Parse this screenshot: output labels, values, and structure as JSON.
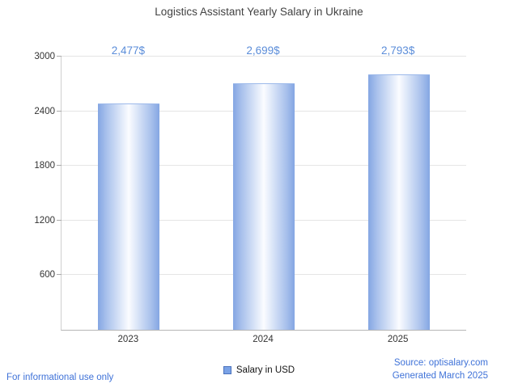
{
  "chart_data": {
    "type": "bar",
    "title": "Logistics Assistant Yearly Salary in Ukraine",
    "categories": [
      "2023",
      "2024",
      "2025"
    ],
    "values": [
      2477,
      2699,
      2793
    ],
    "value_labels": [
      "2,477$",
      "2,699$",
      "2,793$"
    ],
    "xlabel": "",
    "ylabel": "",
    "ylim": [
      0,
      3000
    ],
    "yticks": [
      600,
      1200,
      1800,
      2400,
      3000
    ],
    "grid": true,
    "legend": [
      "Salary in USD"
    ],
    "legend_position": "bottom-center"
  },
  "footer": {
    "left": "For informational use only",
    "source": "Source: optisalary.com",
    "generated": "Generated March 2025"
  },
  "colors": {
    "accent_text": "#5b8dd9",
    "link_text": "#3f72d8",
    "bar_edge": "#84a6e3",
    "bar_center": "#fbfcff",
    "legend_swatch": "#7aa2e6",
    "gridline": "#e5e5e5",
    "axis": "#b6b6b6"
  }
}
